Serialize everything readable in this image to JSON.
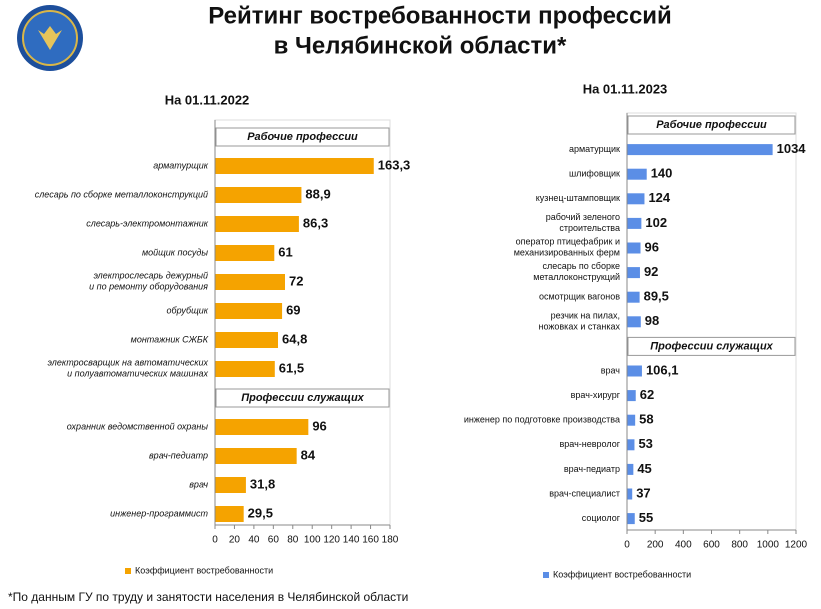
{
  "title": [
    "Рейтинг востребованности профессий",
    "в Челябинской области*"
  ],
  "footnote": "*По данным ГУ по труду и занятости населения в Челябинской области",
  "chart_data": [
    {
      "type": "bar",
      "orientation": "horizontal",
      "subtitle": "На 01.11.2022",
      "series_name": "Коэффициент востребованности",
      "color": "#f5a300",
      "label_style": "italic",
      "groups": [
        {
          "name": "Рабочие профессии",
          "categories": [
            "арматурщик",
            "слесарь по сборке металлоконструкций",
            "слесарь-электромонтажник",
            "мойщик посуды",
            "электрослесарь дежурный\nи по ремонту оборудования",
            "обрубщик",
            "монтажник СЖБК",
            "электросварщик на автоматических\nи полуавтоматических машинах"
          ],
          "values": [
            163.3,
            88.9,
            86.3,
            61,
            72,
            69,
            64.8,
            61.5
          ],
          "value_labels": [
            "163,3",
            "88,9",
            "86,3",
            "61",
            "72",
            "69",
            "64,8",
            "61,5"
          ]
        },
        {
          "name": "Профессии служащих",
          "categories": [
            "охранник ведомственной охраны",
            "врач-педиатр",
            "врач",
            "инженер-программист"
          ],
          "values": [
            96,
            84,
            31.8,
            29.5
          ],
          "value_labels": [
            "96",
            "84",
            "31,8",
            "29,5"
          ]
        }
      ],
      "xlim": [
        0,
        180
      ],
      "xticks": [
        0,
        20,
        40,
        60,
        80,
        100,
        120,
        140,
        160,
        180
      ]
    },
    {
      "type": "bar",
      "orientation": "horizontal",
      "subtitle": "На 01.11.2023",
      "series_name": "Коэффициент востребованности",
      "color": "#5b8ee6",
      "label_style": "normal",
      "groups": [
        {
          "name": "Рабочие профессии",
          "categories": [
            "арматурщик",
            "шлифовщик",
            "кузнец-штамповщик",
            "рабочий зеленого\nстроительства",
            "оператор птицефабрик и\nмеханизированных ферм",
            "слесарь по сборке\nметаллоконструкций",
            "осмотрщик вагонов",
            "резчик на пилах,\nножовках и станках"
          ],
          "values": [
            1034,
            140,
            124,
            102,
            96,
            92,
            89.5,
            98
          ],
          "value_labels": [
            "1034",
            "140",
            "124",
            "102",
            "96",
            "92",
            "89,5",
            "98"
          ]
        },
        {
          "name": "Профессии служащих",
          "categories": [
            "врач",
            "врач-хирург",
            "инженер по подготовке производства",
            "врач-невролог",
            "врач-педиатр",
            "врач-специалист",
            "социолог"
          ],
          "values": [
            106.1,
            62,
            58,
            53,
            45,
            37,
            55
          ],
          "value_labels": [
            "106,1",
            "62",
            "58",
            "53",
            "45",
            "37",
            "55"
          ]
        }
      ],
      "xlim": [
        0,
        1200
      ],
      "xticks": [
        0,
        200,
        400,
        600,
        800,
        1000,
        1200
      ]
    }
  ]
}
